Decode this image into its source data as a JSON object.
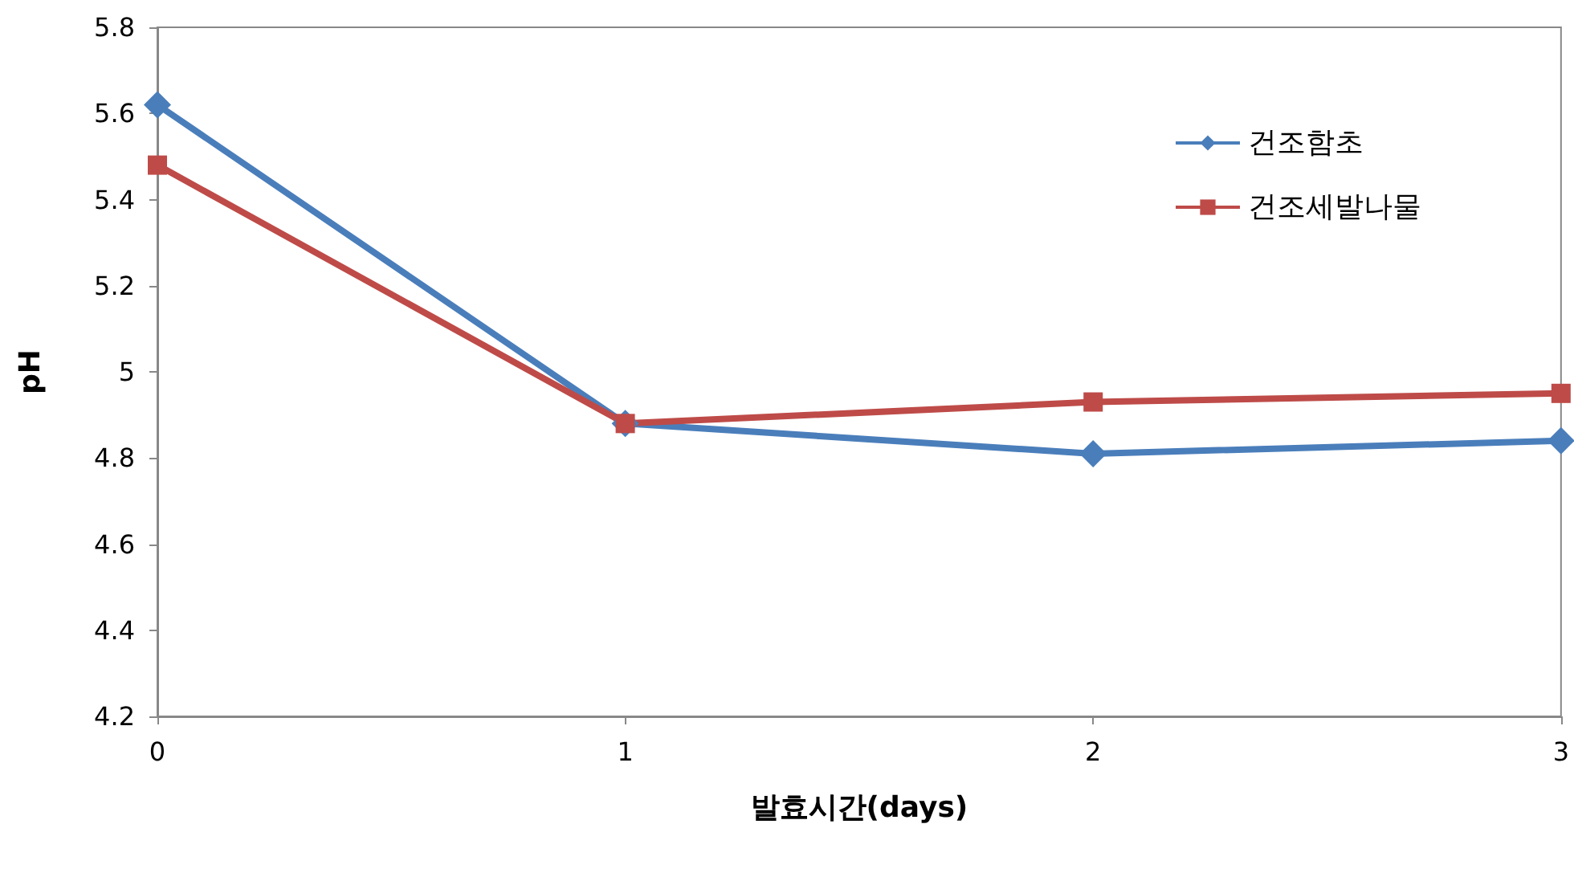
{
  "chart_data": {
    "type": "line",
    "xlabel": "발효시간(days)",
    "ylabel": "pH",
    "x": [
      0,
      1,
      2,
      3
    ],
    "xlim": [
      0,
      3
    ],
    "xticks": [
      0,
      1,
      2,
      3
    ],
    "ylim": [
      4.2,
      5.8
    ],
    "yticks": [
      4.2,
      4.4,
      4.6,
      4.8,
      5,
      5.2,
      5.4,
      5.6,
      5.8
    ],
    "grid": false,
    "legend": "top right",
    "series": [
      {
        "name": "건조함초",
        "color": "#4a7ebb",
        "marker": "diamond",
        "values": [
          5.62,
          4.88,
          4.81,
          4.84
        ]
      },
      {
        "name": "건조세발나물",
        "color": "#be4b48",
        "marker": "square",
        "values": [
          5.48,
          4.88,
          4.93,
          4.95
        ]
      }
    ]
  }
}
